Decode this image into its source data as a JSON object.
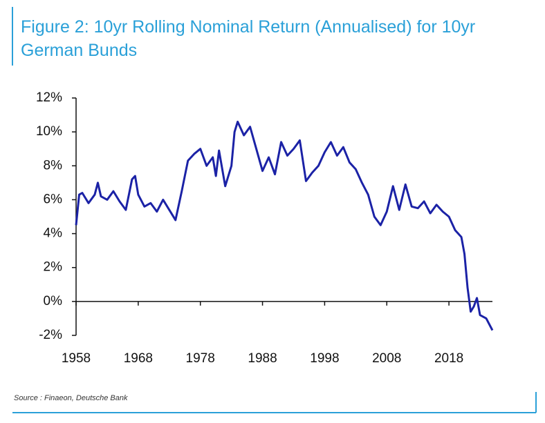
{
  "chart_data": {
    "type": "line",
    "title": "Figure 2: 10yr Rolling Nominal Return (Annualised) for 10yr German Bunds",
    "source": "Source : Finaeon, Deutsche Bank",
    "x": [
      1958,
      1958.5,
      1959,
      1960,
      1961,
      1961.5,
      1962,
      1963,
      1964,
      1965,
      1966,
      1967,
      1967.5,
      1968,
      1969,
      1970,
      1971,
      1972,
      1973,
      1974,
      1975,
      1976,
      1977,
      1978,
      1979,
      1980,
      1980.5,
      1981,
      1982,
      1983,
      1983.5,
      1984,
      1985,
      1986,
      1987,
      1988,
      1989,
      1990,
      1991,
      1992,
      1993,
      1994,
      1995,
      1996,
      1997,
      1998,
      1999,
      2000,
      2001,
      2002,
      2003,
      2004,
      2005,
      2006,
      2007,
      2008,
      2009,
      2010,
      2011,
      2012,
      2013,
      2014,
      2015,
      2016,
      2017,
      2018,
      2019,
      2020,
      2020.5,
      2021,
      2021.5,
      2022,
      2022.5,
      2023,
      2024,
      2025
    ],
    "series": [
      {
        "name": "10yr Rolling Nominal Return",
        "color": "#1b22a6",
        "values": [
          4.5,
          6.3,
          6.4,
          5.8,
          6.3,
          7.0,
          6.2,
          6.0,
          6.5,
          5.9,
          5.4,
          7.2,
          7.4,
          6.3,
          5.6,
          5.8,
          5.3,
          6.0,
          5.4,
          4.8,
          6.5,
          8.3,
          8.7,
          9.0,
          8.0,
          8.5,
          7.4,
          8.9,
          6.8,
          8.0,
          10.0,
          10.6,
          9.8,
          10.3,
          9.0,
          7.7,
          8.5,
          7.5,
          9.4,
          8.6,
          9.0,
          9.5,
          7.1,
          7.6,
          8.0,
          8.8,
          9.4,
          8.6,
          9.1,
          8.2,
          7.8,
          7.0,
          6.3,
          5.0,
          4.5,
          5.3,
          6.8,
          5.4,
          6.9,
          5.6,
          5.5,
          5.9,
          5.2,
          5.7,
          5.3,
          5.0,
          4.2,
          3.8,
          2.8,
          0.8,
          -0.6,
          -0.3,
          0.2,
          -0.8,
          -1.0,
          -1.7
        ]
      }
    ],
    "xlim": [
      1958,
      2025
    ],
    "xticks": [
      1958,
      1968,
      1978,
      1988,
      1998,
      2008,
      2018
    ],
    "ylim": [
      -2,
      12
    ],
    "yticks": [
      {
        "value": -2,
        "label": "-2%"
      },
      {
        "value": 0,
        "label": "0%"
      },
      {
        "value": 2,
        "label": "2%"
      },
      {
        "value": 4,
        "label": "4%"
      },
      {
        "value": 6,
        "label": "6%"
      },
      {
        "value": 8,
        "label": "8%"
      },
      {
        "value": 10,
        "label": "10%"
      },
      {
        "value": 12,
        "label": "12%"
      }
    ],
    "grid": false
  }
}
